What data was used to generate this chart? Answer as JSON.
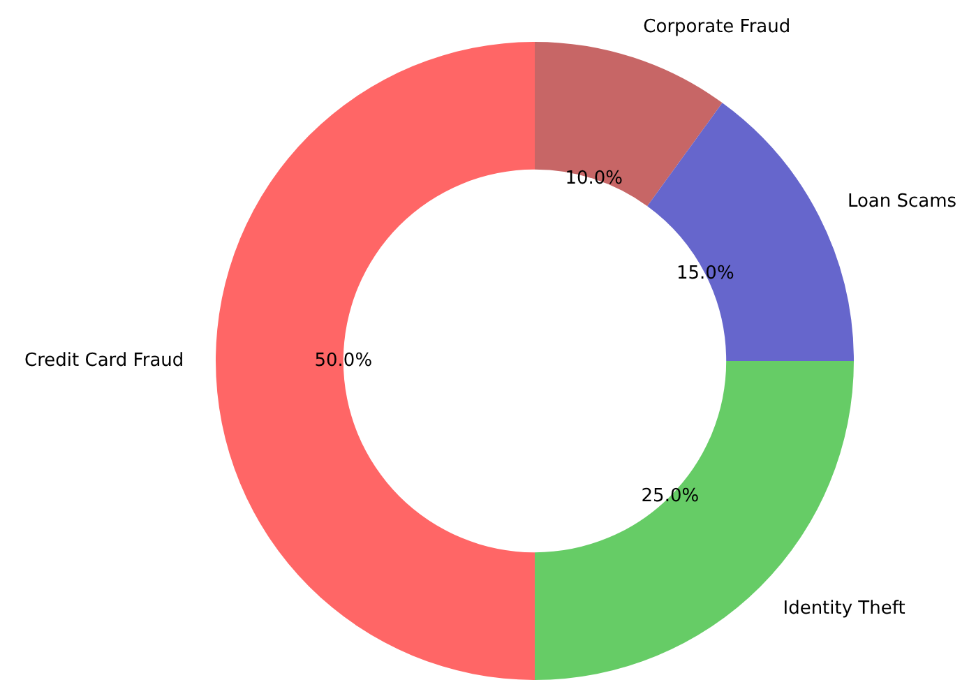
{
  "chart_data": {
    "type": "donut",
    "categories": [
      "Corporate Fraud",
      "Loan Scams",
      "Identity Theft",
      "Credit Card Fraud"
    ],
    "values": [
      10,
      15,
      25,
      50
    ],
    "colors": [
      "#c76666",
      "#6666cc",
      "#66cc66",
      "#ff6666"
    ],
    "value_labels": [
      "10.0%",
      "15.0%",
      "25.0%",
      "50.0%"
    ],
    "legend": false
  }
}
